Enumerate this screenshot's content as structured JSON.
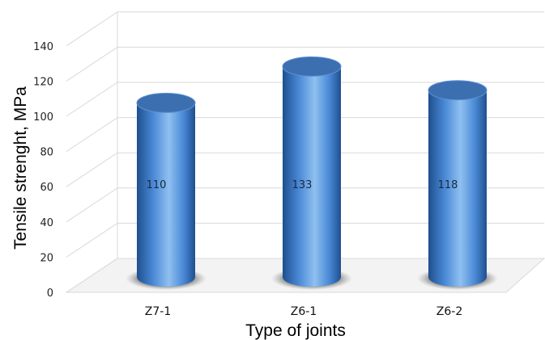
{
  "chart_data": {
    "type": "bar",
    "style": "3d-cylinder",
    "categories": [
      "Z7-1",
      "Z6-1",
      "Z6-2"
    ],
    "values": [
      110,
      133,
      118
    ],
    "data_labels": [
      "110",
      "133",
      "118"
    ],
    "xlabel": "Type of joints",
    "ylabel": "Tensile strenght, MPa",
    "ylim": [
      0,
      140
    ],
    "yticks": [
      0,
      20,
      40,
      60,
      80,
      100,
      120,
      140
    ],
    "grid": true,
    "legend": "none",
    "colors": {
      "bar": "#4a89d6",
      "bar_dark": "#1f4f8f",
      "bar_light": "#8fc0f0",
      "bar_top": "#3b6fb0",
      "grid": "#d9d9d9"
    }
  }
}
